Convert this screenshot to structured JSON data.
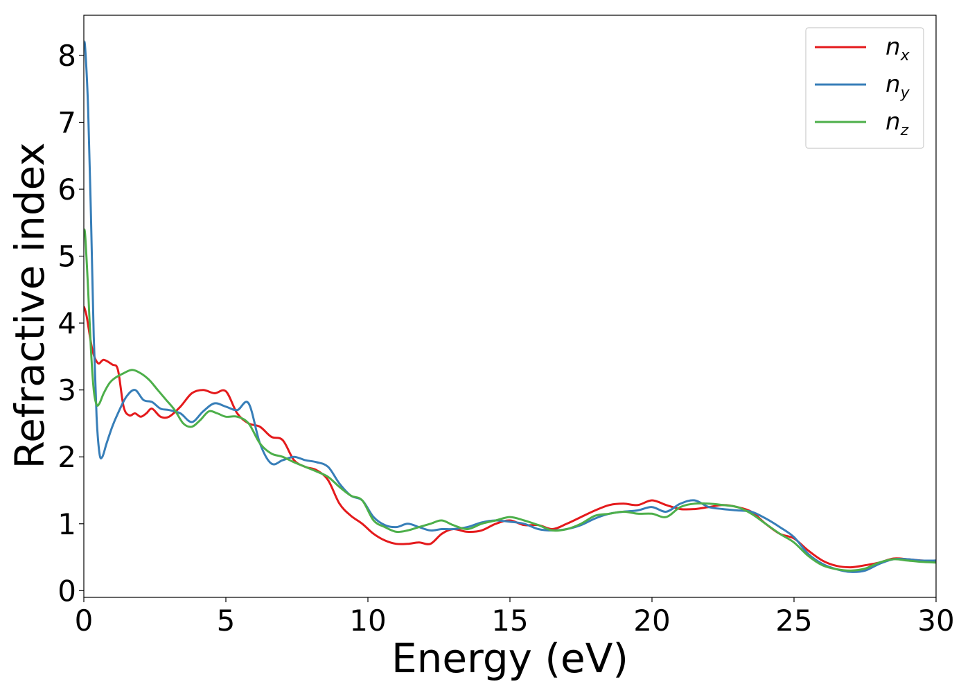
{
  "chart_data": {
    "type": "line",
    "title": "",
    "xlabel": "Energy (eV)",
    "ylabel": "Refractive index",
    "xlim": [
      0,
      30
    ],
    "ylim": [
      -0.1,
      8.6
    ],
    "xticks": [
      0,
      5,
      10,
      15,
      20,
      25,
      30
    ],
    "yticks": [
      0,
      1,
      2,
      3,
      4,
      5,
      6,
      7,
      8
    ],
    "xtick_labels": [
      "0",
      "5",
      "10",
      "15",
      "20",
      "25",
      "30"
    ],
    "ytick_labels": [
      "0",
      "1",
      "2",
      "3",
      "4",
      "5",
      "6",
      "7",
      "8"
    ],
    "grid": false,
    "legend_position": "top-right",
    "series": [
      {
        "name": "n",
        "subscript": "x",
        "color": "#e41a1c",
        "x": [
          0,
          0.1,
          0.3,
          0.5,
          0.7,
          1.0,
          1.2,
          1.4,
          1.6,
          1.8,
          2.0,
          2.2,
          2.4,
          2.7,
          3.0,
          3.4,
          3.8,
          4.2,
          4.6,
          5.0,
          5.4,
          5.8,
          6.2,
          6.6,
          7.0,
          7.4,
          7.8,
          8.2,
          8.6,
          9.0,
          9.4,
          9.8,
          10.2,
          10.6,
          11.0,
          11.4,
          11.8,
          12.2,
          12.6,
          13.0,
          13.5,
          14.0,
          14.5,
          15.0,
          15.5,
          16.0,
          16.5,
          17.0,
          17.5,
          18.0,
          18.5,
          19.0,
          19.5,
          20.0,
          20.5,
          21.0,
          21.5,
          22.0,
          22.5,
          23.0,
          23.5,
          24.0,
          24.5,
          25.0,
          25.5,
          26.0,
          26.5,
          27.0,
          27.5,
          28.0,
          28.5,
          29.0,
          29.5,
          30.0
        ],
        "values": [
          4.25,
          4.1,
          3.6,
          3.4,
          3.45,
          3.38,
          3.3,
          2.75,
          2.62,
          2.65,
          2.6,
          2.65,
          2.72,
          2.6,
          2.6,
          2.75,
          2.95,
          3.0,
          2.95,
          2.98,
          2.65,
          2.5,
          2.45,
          2.3,
          2.25,
          1.95,
          1.85,
          1.8,
          1.65,
          1.3,
          1.12,
          1.0,
          0.85,
          0.75,
          0.7,
          0.7,
          0.72,
          0.7,
          0.85,
          0.92,
          0.88,
          0.9,
          1.0,
          1.05,
          0.98,
          0.98,
          0.92,
          1.0,
          1.1,
          1.2,
          1.28,
          1.3,
          1.28,
          1.35,
          1.28,
          1.22,
          1.22,
          1.25,
          1.28,
          1.25,
          1.18,
          1.0,
          0.85,
          0.78,
          0.6,
          0.45,
          0.37,
          0.35,
          0.38,
          0.42,
          0.48,
          0.47,
          0.45,
          0.45
        ]
      },
      {
        "name": "n",
        "subscript": "y",
        "color": "#377eb8",
        "x": [
          0,
          0.05,
          0.15,
          0.25,
          0.35,
          0.45,
          0.55,
          0.65,
          0.8,
          1.0,
          1.2,
          1.5,
          1.8,
          2.1,
          2.4,
          2.7,
          3.0,
          3.4,
          3.8,
          4.2,
          4.6,
          5.0,
          5.4,
          5.8,
          6.2,
          6.6,
          7.0,
          7.4,
          7.8,
          8.2,
          8.6,
          9.0,
          9.4,
          9.8,
          10.2,
          10.6,
          11.0,
          11.4,
          11.8,
          12.2,
          12.6,
          13.0,
          13.5,
          14.0,
          14.5,
          15.0,
          15.5,
          16.0,
          16.5,
          17.0,
          17.5,
          18.0,
          18.5,
          19.0,
          19.5,
          20.0,
          20.5,
          21.0,
          21.5,
          22.0,
          22.5,
          23.0,
          23.5,
          24.0,
          24.5,
          25.0,
          25.5,
          26.0,
          26.5,
          27.0,
          27.5,
          28.0,
          28.5,
          29.0,
          29.5,
          30.0
        ],
        "values": [
          8.2,
          8.1,
          7.2,
          5.6,
          3.8,
          2.6,
          2.05,
          2.0,
          2.2,
          2.45,
          2.65,
          2.9,
          3.0,
          2.85,
          2.82,
          2.72,
          2.7,
          2.65,
          2.52,
          2.68,
          2.8,
          2.75,
          2.7,
          2.8,
          2.2,
          1.9,
          1.95,
          2.0,
          1.95,
          1.92,
          1.85,
          1.6,
          1.42,
          1.35,
          1.1,
          0.98,
          0.95,
          1.0,
          0.95,
          0.9,
          0.92,
          0.92,
          0.95,
          1.02,
          1.05,
          1.03,
          1.0,
          0.92,
          0.9,
          0.92,
          0.98,
          1.08,
          1.15,
          1.18,
          1.2,
          1.25,
          1.18,
          1.3,
          1.35,
          1.25,
          1.22,
          1.2,
          1.18,
          1.08,
          0.95,
          0.8,
          0.55,
          0.4,
          0.32,
          0.28,
          0.3,
          0.4,
          0.47,
          0.47,
          0.45,
          0.45
        ]
      },
      {
        "name": "n",
        "subscript": "z",
        "color": "#4daf4a",
        "x": [
          0,
          0.05,
          0.15,
          0.25,
          0.35,
          0.45,
          0.55,
          0.7,
          0.9,
          1.1,
          1.4,
          1.7,
          2.0,
          2.3,
          2.6,
          2.9,
          3.2,
          3.5,
          3.8,
          4.1,
          4.4,
          4.7,
          5.0,
          5.4,
          5.8,
          6.2,
          6.6,
          7.0,
          7.4,
          7.8,
          8.2,
          8.6,
          9.0,
          9.4,
          9.8,
          10.2,
          10.6,
          11.0,
          11.4,
          11.8,
          12.2,
          12.6,
          13.0,
          13.5,
          14.0,
          14.5,
          15.0,
          15.5,
          16.0,
          16.5,
          17.0,
          17.5,
          18.0,
          18.5,
          19.0,
          19.5,
          20.0,
          20.5,
          21.0,
          21.5,
          22.0,
          22.5,
          23.0,
          23.5,
          24.0,
          24.5,
          25.0,
          25.5,
          26.0,
          26.5,
          27.0,
          27.5,
          28.0,
          28.5,
          29.0,
          29.5,
          30.0
        ],
        "values": [
          5.4,
          5.3,
          4.5,
          3.6,
          3.0,
          2.78,
          2.8,
          2.95,
          3.1,
          3.18,
          3.25,
          3.3,
          3.25,
          3.15,
          3.0,
          2.85,
          2.7,
          2.5,
          2.45,
          2.55,
          2.68,
          2.65,
          2.6,
          2.6,
          2.5,
          2.2,
          2.05,
          2.0,
          1.92,
          1.85,
          1.78,
          1.7,
          1.55,
          1.42,
          1.35,
          1.05,
          0.95,
          0.88,
          0.9,
          0.95,
          1.0,
          1.05,
          0.98,
          0.92,
          1.0,
          1.05,
          1.1,
          1.05,
          0.98,
          0.9,
          0.92,
          1.0,
          1.12,
          1.15,
          1.18,
          1.15,
          1.15,
          1.1,
          1.25,
          1.3,
          1.3,
          1.28,
          1.25,
          1.15,
          1.0,
          0.85,
          0.72,
          0.52,
          0.38,
          0.32,
          0.3,
          0.33,
          0.42,
          0.47,
          0.45,
          0.43,
          0.42
        ]
      }
    ]
  }
}
